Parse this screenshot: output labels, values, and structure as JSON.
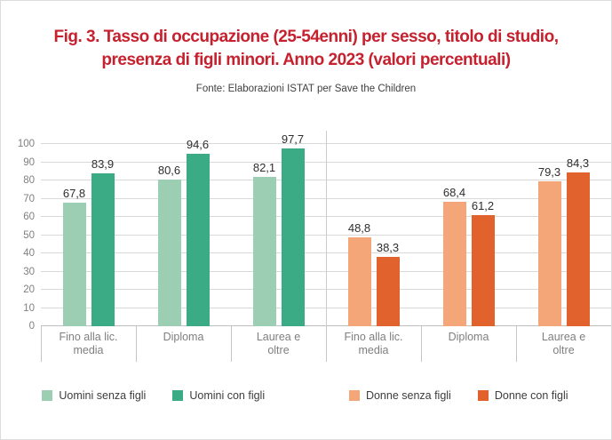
{
  "chart_data": {
    "type": "bar",
    "title": "Fig. 3. Tasso di occupazione (25-54enni) per sesso, titolo di studio,\npresenza di figli minori. Anno 2023 (valori percentuali)",
    "source": "Fonte: Elaborazioni ISTAT per Save the Children",
    "ylim": [
      0,
      100
    ],
    "yticks": [
      0,
      10,
      20,
      30,
      40,
      50,
      60,
      70,
      80,
      90,
      100
    ],
    "grid": true,
    "value_decimal_separator": ",",
    "legend_position": "bottom",
    "panels": [
      {
        "categories": [
          "Fino alla lic.\nmedia",
          "Diploma",
          "Laurea e\noltre"
        ],
        "series": [
          {
            "name": "Uomini senza figli",
            "color": "#9bceb2",
            "values": [
              67.8,
              80.6,
              82.1
            ]
          },
          {
            "name": "Uomini con figli",
            "color": "#3aab84",
            "values": [
              83.9,
              94.6,
              97.7
            ]
          }
        ]
      },
      {
        "categories": [
          "Fino alla lic.\nmedia",
          "Diploma",
          "Laurea e\noltre"
        ],
        "series": [
          {
            "name": "Donne senza figli",
            "color": "#f4a679",
            "values": [
              48.8,
              68.4,
              79.3
            ]
          },
          {
            "name": "Donne con figli",
            "color": "#e1622c",
            "values": [
              38.3,
              61.2,
              84.3
            ]
          }
        ]
      }
    ],
    "legend": {
      "items": [
        {
          "label": "Uomini senza figli",
          "color": "#9bceb2"
        },
        {
          "label": "Uomini con figli",
          "color": "#3aab84"
        },
        {
          "label": "Donne senza figli",
          "color": "#f4a679"
        },
        {
          "label": "Donne con figli",
          "color": "#e1622c"
        }
      ]
    },
    "colors": {
      "title": "#c5212e",
      "grid": "#d9d9d9",
      "axis": "#bfbfbf",
      "tick_label": "#7f7f7f",
      "value_label": "#2e2e2e",
      "source_text": "#404040"
    }
  }
}
